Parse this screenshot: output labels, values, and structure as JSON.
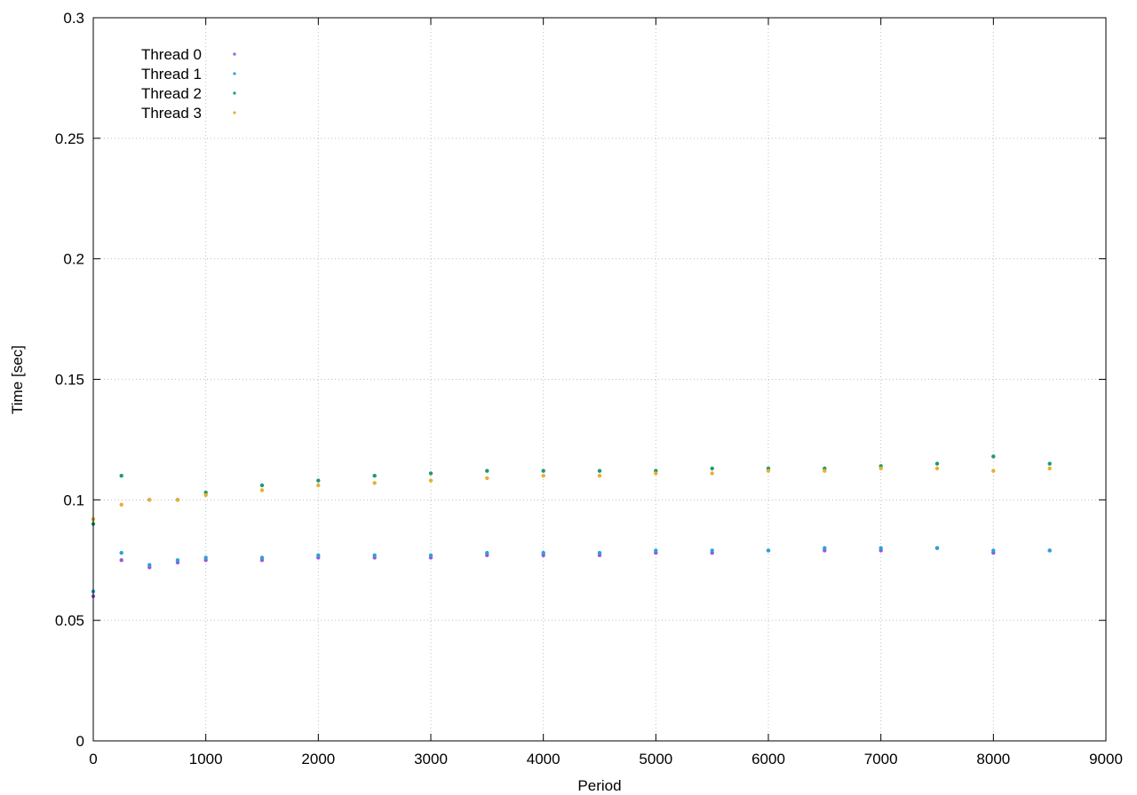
{
  "chart_data": {
    "type": "scatter",
    "title": "",
    "xlabel": "Period",
    "ylabel": "Time [sec]",
    "xlim": [
      0,
      9000
    ],
    "ylim": [
      0,
      0.3
    ],
    "x_ticks": [
      0,
      1000,
      2000,
      3000,
      4000,
      5000,
      6000,
      7000,
      8000,
      9000
    ],
    "x_tick_labels": [
      "0",
      "1000",
      "2000",
      "3000",
      "4000",
      "5000",
      "6000",
      "7000",
      "8000",
      "9000"
    ],
    "y_ticks": [
      0,
      0.05,
      0.1,
      0.15,
      0.2,
      0.25,
      0.3
    ],
    "y_tick_labels": [
      "0",
      "0.05",
      "0.1",
      "0.15",
      "0.2",
      "0.25",
      "0.3"
    ],
    "grid": true,
    "legend_position": "top-left",
    "colors": [
      "#9a58d6",
      "#2aa3d8",
      "#1e9a6e",
      "#e6b030"
    ],
    "series": [
      {
        "name": "Thread 0",
        "color": "#9a58d6",
        "x": [
          0,
          250,
          500,
          750,
          1000,
          1500,
          2000,
          2500,
          3000,
          3500,
          4000,
          4500,
          5000,
          5500,
          6000,
          6500,
          7000,
          7500,
          8000,
          8500
        ],
        "y": [
          0.06,
          0.075,
          0.072,
          0.074,
          0.075,
          0.075,
          0.076,
          0.076,
          0.076,
          0.077,
          0.077,
          0.077,
          0.078,
          0.078,
          0.079,
          0.079,
          0.079,
          0.08,
          0.078,
          0.079
        ]
      },
      {
        "name": "Thread 1",
        "color": "#2aa3d8",
        "x": [
          0,
          250,
          500,
          750,
          1000,
          1500,
          2000,
          2500,
          3000,
          3500,
          4000,
          4500,
          5000,
          5500,
          6000,
          6500,
          7000,
          7500,
          8000,
          8500
        ],
        "y": [
          0.062,
          0.078,
          0.073,
          0.075,
          0.076,
          0.076,
          0.077,
          0.077,
          0.077,
          0.078,
          0.078,
          0.078,
          0.079,
          0.079,
          0.079,
          0.08,
          0.08,
          0.08,
          0.079,
          0.079
        ]
      },
      {
        "name": "Thread 2",
        "color": "#1e9a6e",
        "x": [
          0,
          250,
          500,
          750,
          1000,
          1500,
          2000,
          2500,
          3000,
          3500,
          4000,
          4500,
          5000,
          5500,
          6000,
          6500,
          7000,
          7500,
          8000,
          8500
        ],
        "y": [
          0.09,
          0.11,
          0.1,
          0.1,
          0.103,
          0.106,
          0.108,
          0.11,
          0.111,
          0.112,
          0.112,
          0.112,
          0.112,
          0.113,
          0.113,
          0.113,
          0.114,
          0.115,
          0.118,
          0.115
        ]
      },
      {
        "name": "Thread 3",
        "color": "#e6b030",
        "x": [
          0,
          250,
          500,
          750,
          1000,
          1500,
          2000,
          2500,
          3000,
          3500,
          4000,
          4500,
          5000,
          5500,
          6000,
          6500,
          7000,
          7500,
          8000,
          8500
        ],
        "y": [
          0.092,
          0.098,
          0.1,
          0.1,
          0.102,
          0.104,
          0.106,
          0.107,
          0.108,
          0.109,
          0.11,
          0.11,
          0.111,
          0.111,
          0.112,
          0.112,
          0.113,
          0.113,
          0.112,
          0.113
        ]
      }
    ]
  }
}
